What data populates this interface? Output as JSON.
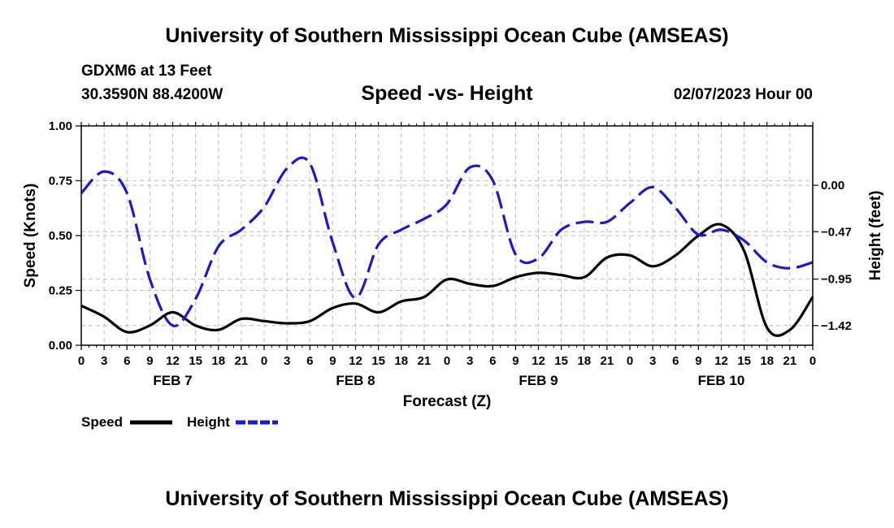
{
  "header": {
    "title": "University of Southern Mississippi Ocean Cube (AMSEAS)",
    "station": "GDXM6 at 13 Feet",
    "coords": "30.3590N  88.4200W",
    "chart_title": "Speed -vs- Height",
    "datetime": "02/07/2023 Hour 00"
  },
  "footer": {
    "title": "University of Southern Mississippi Ocean Cube (AMSEAS)"
  },
  "chart_data": {
    "type": "line",
    "title": "Speed -vs- Height",
    "xlabel": "Forecast (Z)",
    "ylabel": "Speed (Knots)",
    "y2label": "Height (feet)",
    "xlim": [
      0,
      96
    ],
    "ylim": [
      0,
      1
    ],
    "y2lim": [
      -1.619,
      0.601
    ],
    "x_ticks": [
      0,
      3,
      6,
      9,
      12,
      15,
      18,
      21,
      24,
      27,
      30,
      33,
      36,
      39,
      42,
      45,
      48,
      51,
      54,
      57,
      60,
      63,
      66,
      69,
      72,
      75,
      78,
      81,
      84,
      87,
      90,
      93,
      96
    ],
    "x_tick_labels": [
      "0",
      "3",
      "6",
      "9",
      "12",
      "15",
      "18",
      "21",
      "0",
      "3",
      "6",
      "9",
      "12",
      "15",
      "18",
      "21",
      "0",
      "3",
      "6",
      "9",
      "12",
      "15",
      "18",
      "21",
      "0",
      "3",
      "6",
      "9",
      "12",
      "15",
      "18",
      "21",
      "0"
    ],
    "y_ticks": [
      0,
      0.25,
      0.5,
      0.75,
      1.0
    ],
    "y_tick_labels": [
      "0.00",
      "0.25",
      "0.50",
      "0.75",
      "1.00"
    ],
    "y2_ticks": [
      0,
      -0.47,
      -0.95,
      -1.42
    ],
    "y2_tick_labels": [
      "0.00",
      "−0.47",
      "−0.95",
      "−1.42"
    ],
    "day_labels": [
      {
        "label": "FEB 7",
        "x": 12
      },
      {
        "label": "FEB 8",
        "x": 36
      },
      {
        "label": "FEB 9",
        "x": 60
      },
      {
        "label": "FEB 10",
        "x": 84
      }
    ],
    "grid": true,
    "legend_position": "bottom-left",
    "series": [
      {
        "name": "Speed",
        "axis": "left",
        "color": "#000000",
        "dash": "solid",
        "x": [
          0,
          3,
          6,
          9,
          12,
          15,
          18,
          21,
          24,
          27,
          30,
          33,
          36,
          39,
          42,
          45,
          48,
          51,
          54,
          57,
          60,
          63,
          66,
          69,
          72,
          75,
          78,
          81,
          84,
          87,
          90,
          93,
          96
        ],
        "values": [
          0.18,
          0.13,
          0.06,
          0.09,
          0.15,
          0.09,
          0.07,
          0.12,
          0.11,
          0.1,
          0.11,
          0.17,
          0.19,
          0.15,
          0.2,
          0.22,
          0.3,
          0.28,
          0.27,
          0.31,
          0.33,
          0.32,
          0.31,
          0.4,
          0.41,
          0.36,
          0.41,
          0.5,
          0.55,
          0.43,
          0.08,
          0.07,
          0.22
        ]
      },
      {
        "name": "Height",
        "axis": "right",
        "color": "#1a1acc",
        "dash": "dashed",
        "x": [
          0,
          3,
          6,
          9,
          12,
          15,
          18,
          21,
          24,
          27,
          30,
          33,
          36,
          39,
          42,
          45,
          48,
          51,
          54,
          57,
          60,
          63,
          66,
          69,
          72,
          75,
          78,
          81,
          84,
          87,
          90,
          93,
          96
        ],
        "values": [
          -0.08,
          0.14,
          -0.08,
          -0.95,
          -1.42,
          -1.15,
          -0.62,
          -0.45,
          -0.22,
          0.17,
          0.22,
          -0.58,
          -1.14,
          -0.6,
          -0.45,
          -0.34,
          -0.19,
          0.18,
          0.05,
          -0.7,
          -0.74,
          -0.45,
          -0.37,
          -0.37,
          -0.18,
          -0.02,
          -0.23,
          -0.5,
          -0.45,
          -0.56,
          -0.78,
          -0.84,
          -0.78
        ]
      }
    ]
  }
}
